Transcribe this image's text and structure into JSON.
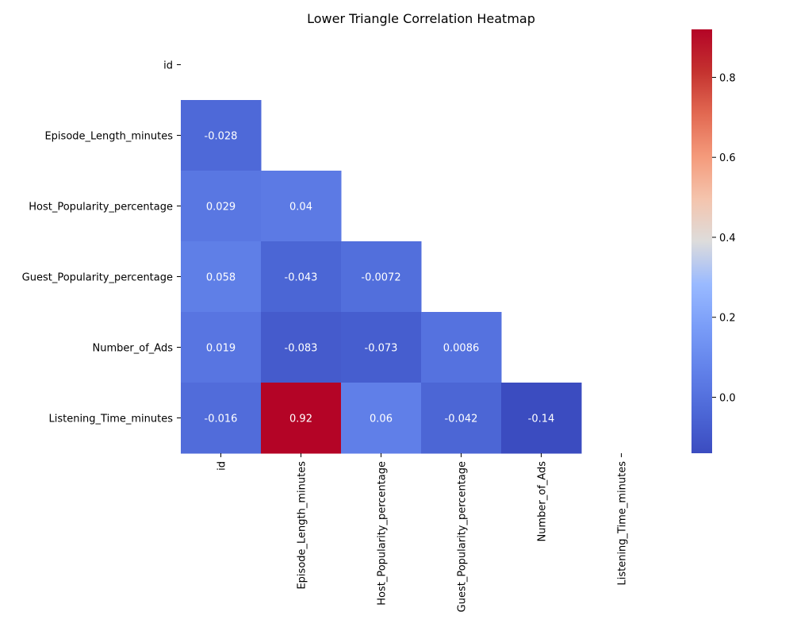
{
  "chart_data": {
    "type": "heatmap",
    "title": "Lower Triangle Correlation Heatmap",
    "labels": [
      "id",
      "Episode_Length_minutes",
      "Host_Popularity_percentage",
      "Guest_Popularity_percentage",
      "Number_of_Ads",
      "Listening_Time_minutes"
    ],
    "cells": [
      {
        "row": 1,
        "col": 0,
        "value": -0.028,
        "text": "-0.028"
      },
      {
        "row": 2,
        "col": 0,
        "value": 0.029,
        "text": "0.029"
      },
      {
        "row": 2,
        "col": 1,
        "value": 0.04,
        "text": "0.04"
      },
      {
        "row": 3,
        "col": 0,
        "value": 0.058,
        "text": "0.058"
      },
      {
        "row": 3,
        "col": 1,
        "value": -0.043,
        "text": "-0.043"
      },
      {
        "row": 3,
        "col": 2,
        "value": -0.0072,
        "text": "-0.0072"
      },
      {
        "row": 4,
        "col": 0,
        "value": 0.019,
        "text": "0.019"
      },
      {
        "row": 4,
        "col": 1,
        "value": -0.083,
        "text": "-0.083"
      },
      {
        "row": 4,
        "col": 2,
        "value": -0.073,
        "text": "-0.073"
      },
      {
        "row": 4,
        "col": 3,
        "value": 0.0086,
        "text": "0.0086"
      },
      {
        "row": 5,
        "col": 0,
        "value": -0.016,
        "text": "-0.016"
      },
      {
        "row": 5,
        "col": 1,
        "value": 0.92,
        "text": "0.92"
      },
      {
        "row": 5,
        "col": 2,
        "value": 0.06,
        "text": "0.06"
      },
      {
        "row": 5,
        "col": 3,
        "value": -0.042,
        "text": "-0.042"
      },
      {
        "row": 5,
        "col": 4,
        "value": -0.14,
        "text": "-0.14"
      }
    ],
    "colormap": "coolwarm",
    "vmin": -0.14,
    "vmax": 0.92,
    "colorbar_ticks": [
      {
        "value": 0.0,
        "label": "0.0"
      },
      {
        "value": 0.2,
        "label": "0.2"
      },
      {
        "value": 0.4,
        "label": "0.4"
      },
      {
        "value": 0.6,
        "label": "0.6"
      },
      {
        "value": 0.8,
        "label": "0.8"
      }
    ]
  }
}
